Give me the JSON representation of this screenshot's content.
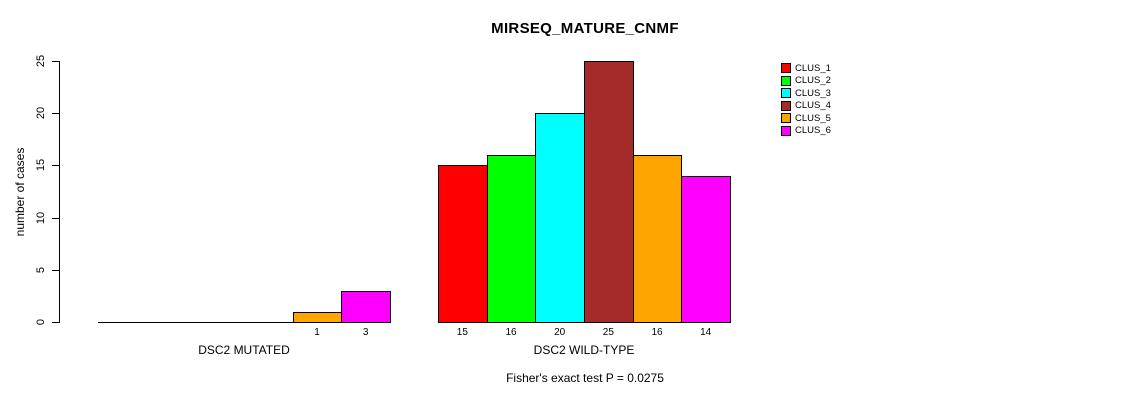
{
  "title": "MIRSEQ_MATURE_CNMF",
  "ylabel": "number of cases",
  "subtitle": "Fisher's exact test P = 0.0275",
  "legend": {
    "entries": [
      {
        "label": "CLUS_1",
        "color": "#ff0000"
      },
      {
        "label": "CLUS_2",
        "color": "#00ff00"
      },
      {
        "label": "CLUS_3",
        "color": "#00ffff"
      },
      {
        "label": "CLUS_4",
        "color": "#a52a2a"
      },
      {
        "label": "CLUS_5",
        "color": "#ffa500"
      },
      {
        "label": "CLUS_6",
        "color": "#ff00ff"
      }
    ]
  },
  "chart_data": {
    "type": "bar",
    "title": "MIRSEQ_MATURE_CNMF",
    "xlabel": "",
    "ylabel": "number of cases",
    "ylim": [
      0,
      25
    ],
    "yticks": [
      0,
      5,
      10,
      15,
      20,
      25
    ],
    "grid": false,
    "legend_position": "top-right-outside",
    "categories": [
      "DSC2 MUTATED",
      "DSC2 WILD-TYPE"
    ],
    "series": [
      {
        "name": "CLUS_1",
        "color": "#ff0000",
        "values": [
          0,
          15
        ]
      },
      {
        "name": "CLUS_2",
        "color": "#00ff00",
        "values": [
          0,
          16
        ]
      },
      {
        "name": "CLUS_3",
        "color": "#00ffff",
        "values": [
          0,
          20
        ]
      },
      {
        "name": "CLUS_4",
        "color": "#a52a2a",
        "values": [
          0,
          25
        ]
      },
      {
        "name": "CLUS_5",
        "color": "#ffa500",
        "values": [
          1,
          16
        ]
      },
      {
        "name": "CLUS_6",
        "color": "#ff00ff",
        "values": [
          3,
          14
        ]
      }
    ],
    "bar_value_labels": {
      "shown": true,
      "zeros_hidden": true
    },
    "annotation": "Fisher's exact test P = 0.0275"
  }
}
